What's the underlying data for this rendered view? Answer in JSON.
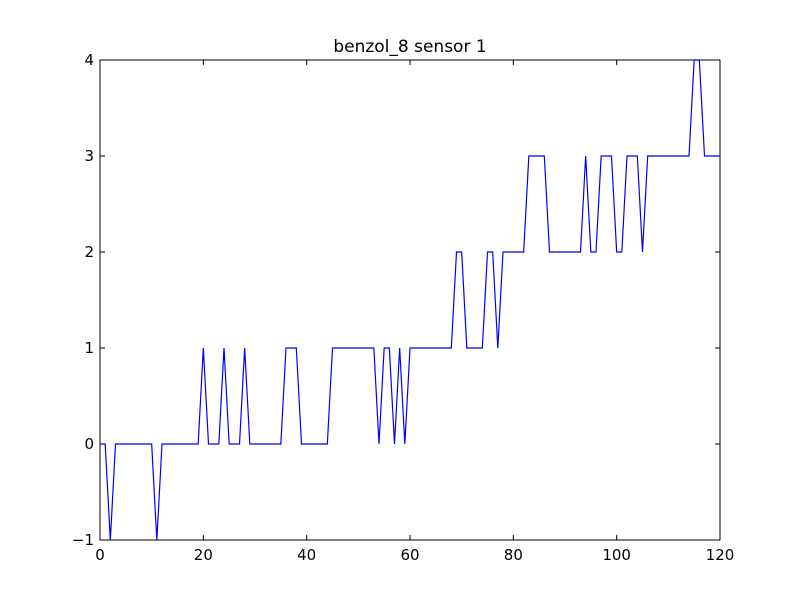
{
  "chart_data": {
    "type": "line",
    "title": "benzol_8 sensor 1",
    "xlabel": "",
    "ylabel": "",
    "xlim": [
      0,
      120
    ],
    "ylim": [
      -1,
      4
    ],
    "x_ticks": [
      0,
      20,
      40,
      60,
      80,
      100,
      120
    ],
    "y_ticks": [
      -1,
      0,
      1,
      2,
      3,
      4
    ],
    "grid": false,
    "line_color": "#0000ff",
    "series": [
      {
        "name": "",
        "x": [
          0,
          1,
          2,
          3,
          4,
          5,
          6,
          7,
          8,
          9,
          10,
          11,
          12,
          13,
          14,
          15,
          16,
          17,
          18,
          19,
          20,
          21,
          22,
          23,
          24,
          25,
          26,
          27,
          28,
          29,
          30,
          31,
          32,
          33,
          34,
          35,
          36,
          37,
          38,
          39,
          40,
          41,
          42,
          43,
          44,
          45,
          46,
          47,
          48,
          49,
          50,
          51,
          52,
          53,
          54,
          55,
          56,
          57,
          58,
          59,
          60,
          61,
          62,
          63,
          64,
          65,
          66,
          67,
          68,
          69,
          70,
          71,
          72,
          73,
          74,
          75,
          76,
          77,
          78,
          79,
          80,
          81,
          82,
          83,
          84,
          85,
          86,
          87,
          88,
          89,
          90,
          91,
          92,
          93,
          94,
          95,
          96,
          97,
          98,
          99,
          100,
          101,
          102,
          103,
          104,
          105,
          106,
          107,
          108,
          109,
          110,
          111,
          112,
          113,
          114,
          115,
          116,
          117,
          118,
          119,
          120
        ],
        "y": [
          0,
          0,
          -1,
          0,
          0,
          0,
          0,
          0,
          0,
          0,
          0,
          -1,
          0,
          0,
          0,
          0,
          0,
          0,
          0,
          0,
          1,
          0,
          0,
          0,
          1,
          0,
          0,
          0,
          1,
          0,
          0,
          0,
          0,
          0,
          0,
          0,
          1,
          1,
          1,
          0,
          0,
          0,
          0,
          0,
          0,
          1,
          1,
          1,
          1,
          1,
          1,
          1,
          1,
          1,
          0,
          1,
          1,
          0,
          1,
          0,
          1,
          1,
          1,
          1,
          1,
          1,
          1,
          1,
          1,
          2,
          2,
          1,
          1,
          1,
          1,
          2,
          2,
          1,
          2,
          2,
          2,
          2,
          2,
          3,
          3,
          3,
          3,
          2,
          2,
          2,
          2,
          2,
          2,
          2,
          3,
          2,
          2,
          3,
          3,
          3,
          2,
          2,
          3,
          3,
          3,
          2,
          3,
          3,
          3,
          3,
          3,
          3,
          3,
          3,
          3,
          4,
          4,
          3,
          3,
          3,
          3
        ]
      }
    ]
  }
}
